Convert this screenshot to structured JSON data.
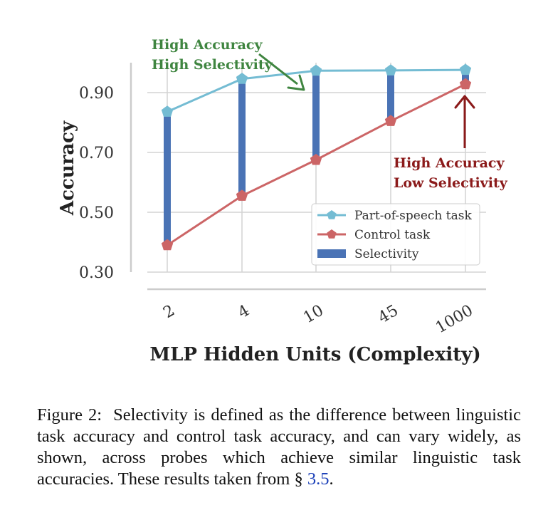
{
  "chart_data": {
    "type": "line",
    "title": "",
    "xlabel": "MLP Hidden Units (Complexity)",
    "ylabel": "Accuracy",
    "categories": [
      "2",
      "4",
      "10",
      "45",
      "1000"
    ],
    "yticks": [
      "0.30",
      "0.50",
      "0.70",
      "0.90"
    ],
    "ylim": [
      0.28,
      0.99
    ],
    "grid": true,
    "legend_position": "lower-right",
    "series": [
      {
        "name": "Part-of-speech task",
        "values": [
          0.836,
          0.946,
          0.973,
          0.974,
          0.976
        ],
        "color": "#74bcd3",
        "marker": "pentagon"
      },
      {
        "name": "Control task",
        "values": [
          0.39,
          0.555,
          0.675,
          0.805,
          0.928
        ],
        "color": "#cc6566",
        "marker": "pentagon"
      }
    ],
    "selectivity": {
      "name": "Selectivity",
      "color": "#4a73b5"
    },
    "annotations": [
      {
        "lines": [
          "High Accuracy",
          "High Selectivity"
        ],
        "color": "#3f8540"
      },
      {
        "lines": [
          "High Accuracy",
          "Low Selectivity"
        ],
        "color": "#8b1a1a"
      }
    ]
  },
  "caption": {
    "label": "Figure 2:",
    "text": "Selectivity is defined as the difference between linguistic task accuracy and control task accuracy, and can vary widely, as shown, across probes which achieve similar linguistic task accuracies. These results taken from § ",
    "ref": "3.5",
    "end": "."
  }
}
